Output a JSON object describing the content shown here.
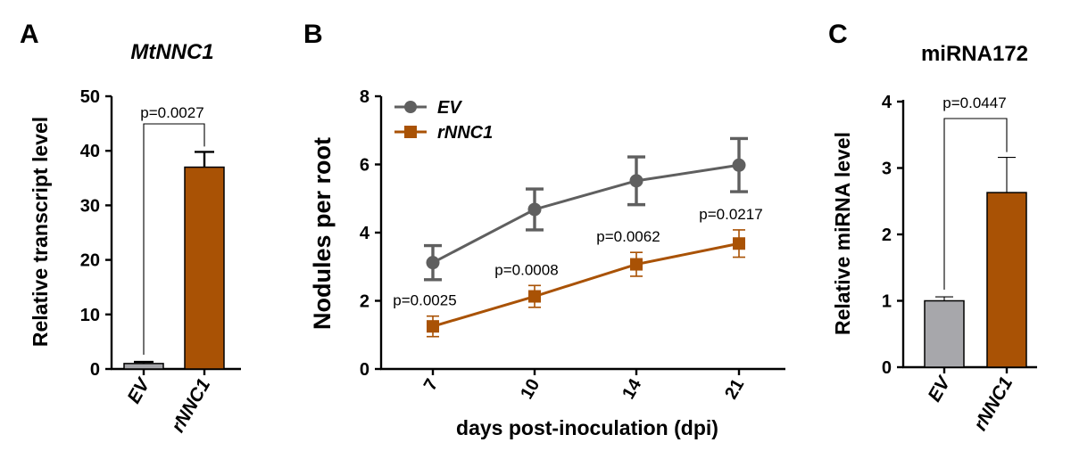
{
  "colors": {
    "ev": "#a7a7ab",
    "ev_line": "#5f5f5f",
    "rnnc1": "#a95205",
    "axis": "#000000"
  },
  "chart_data": [
    {
      "type": "bar",
      "panel": "A",
      "title": "MtNNC1",
      "xlabel": "",
      "ylabel": "Relative transcript level",
      "ylim": [
        0,
        50
      ],
      "yticks": [
        "0",
        "10",
        "20",
        "30",
        "40",
        "50"
      ],
      "categories": [
        "EV",
        "rNNC1"
      ],
      "values": [
        1.0,
        37.0
      ],
      "errors": [
        0.3,
        2.8
      ],
      "annotation": "p=0.0027"
    },
    {
      "type": "line",
      "panel": "B",
      "title": "",
      "xlabel": "days post-inoculation (dpi)",
      "ylabel": "Nodules per root",
      "ylim": [
        0,
        8
      ],
      "yticks": [
        "0",
        "2",
        "4",
        "6",
        "8"
      ],
      "x": [
        "7",
        "10",
        "14",
        "21"
      ],
      "series": [
        {
          "name": "EV",
          "values": [
            3.12,
            4.68,
            5.52,
            5.98
          ],
          "errors": [
            0.5,
            0.6,
            0.7,
            0.78
          ]
        },
        {
          "name": "rNNC1",
          "values": [
            1.25,
            2.13,
            3.07,
            3.68
          ],
          "errors": [
            0.3,
            0.32,
            0.35,
            0.4
          ]
        }
      ],
      "annotations": [
        "p=0.0025",
        "p=0.0008",
        "p=0.0062",
        "p=0.0217"
      ],
      "legend_position": "top-left"
    },
    {
      "type": "bar",
      "panel": "C",
      "title": "miRNA172",
      "xlabel": "",
      "ylabel": "Relative miRNA level",
      "ylim": [
        0,
        4
      ],
      "yticks": [
        "0",
        "1",
        "2",
        "3",
        "4"
      ],
      "categories": [
        "EV",
        "rNNC1"
      ],
      "values": [
        1.0,
        2.63
      ],
      "errors": [
        0.06,
        0.53
      ],
      "annotation": "p=0.0447"
    }
  ]
}
